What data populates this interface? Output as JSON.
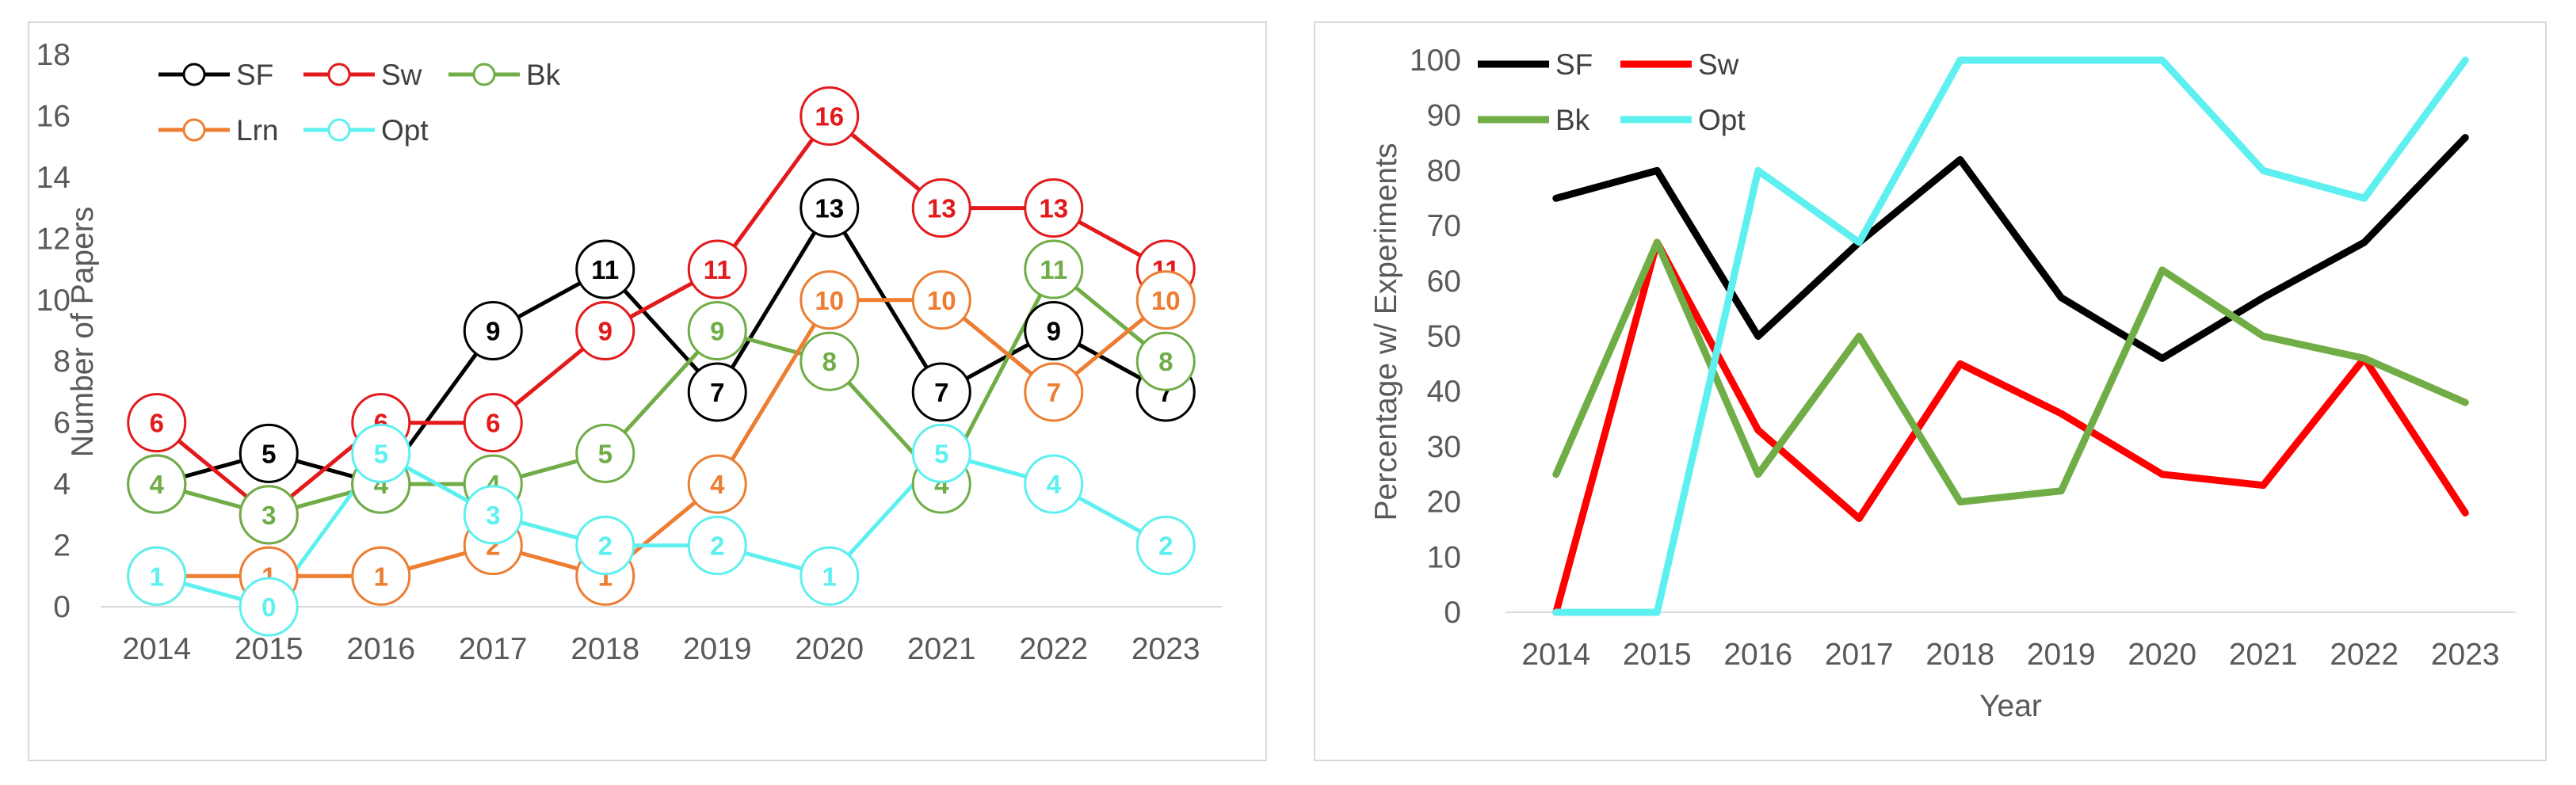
{
  "chart_data": [
    {
      "type": "line",
      "title": "",
      "xlabel": "",
      "ylabel": "Number of Papers",
      "ylim": [
        0,
        18
      ],
      "yticks": [
        0,
        2,
        4,
        6,
        8,
        10,
        12,
        14,
        16,
        18
      ],
      "categories": [
        "2014",
        "2015",
        "2016",
        "2017",
        "2018",
        "2019",
        "2020",
        "2021",
        "2022",
        "2023"
      ],
      "markers": "circle",
      "data_labels": true,
      "legend": "top-left",
      "series": [
        {
          "name": "SF",
          "color": "#000000",
          "values": [
            4,
            5,
            4,
            9,
            11,
            7,
            13,
            7,
            9,
            7
          ]
        },
        {
          "name": "Sw",
          "color": "#e31a1c",
          "values": [
            6,
            3,
            6,
            6,
            9,
            11,
            16,
            13,
            13,
            11
          ]
        },
        {
          "name": "Bk",
          "color": "#70ad47",
          "values": [
            4,
            3,
            4,
            4,
            5,
            9,
            8,
            4,
            11,
            8
          ]
        },
        {
          "name": "Lrn",
          "color": "#ed7d31",
          "values": [
            1,
            1,
            1,
            2,
            1,
            4,
            10,
            10,
            7,
            10
          ]
        },
        {
          "name": "Opt",
          "color": "#5ef0f0",
          "values": [
            1,
            0,
            5,
            3,
            2,
            2,
            1,
            5,
            4,
            2
          ]
        }
      ]
    },
    {
      "type": "line",
      "title": "",
      "xlabel": "Year",
      "ylabel": "Percentage w/ Experiments",
      "ylim": [
        0,
        100
      ],
      "yticks": [
        0,
        10,
        20,
        30,
        40,
        50,
        60,
        70,
        80,
        90,
        100
      ],
      "categories": [
        "2014",
        "2015",
        "2016",
        "2017",
        "2018",
        "2019",
        "2020",
        "2021",
        "2022",
        "2023"
      ],
      "markers": "none",
      "data_labels": false,
      "legend": "top-left",
      "series": [
        {
          "name": "SF",
          "color": "#000000",
          "values": [
            75,
            80,
            50,
            67,
            82,
            57,
            46,
            57,
            67,
            86
          ]
        },
        {
          "name": "Sw",
          "color": "#ff0000",
          "values": [
            0,
            67,
            33,
            17,
            45,
            36,
            25,
            23,
            46,
            18
          ]
        },
        {
          "name": "Bk",
          "color": "#70ad47",
          "values": [
            25,
            67,
            25,
            50,
            20,
            22,
            62,
            50,
            46,
            38
          ]
        },
        {
          "name": "Opt",
          "color": "#5ef0f0",
          "values": [
            0,
            0,
            80,
            67,
            100,
            100,
            100,
            80,
            75,
            100
          ]
        }
      ]
    }
  ]
}
